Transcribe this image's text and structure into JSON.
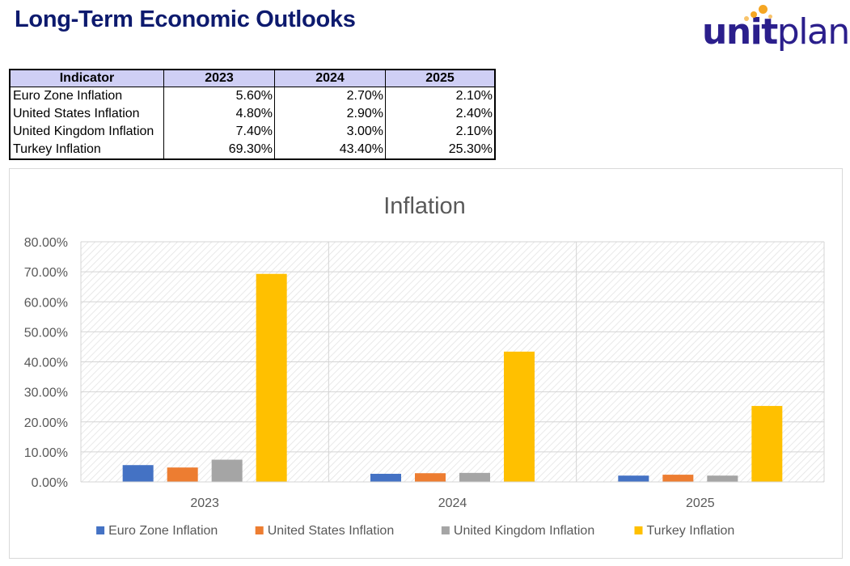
{
  "header": {
    "title": "Long-Term Economic Outlooks",
    "logo_text_bold": "unit",
    "logo_text_light": "plan"
  },
  "table": {
    "headers": [
      "Indicator",
      "2023",
      "2024",
      "2025"
    ],
    "rows": [
      [
        "Euro Zone Inflation",
        "5.60%",
        "2.70%",
        "2.10%"
      ],
      [
        "United States Inflation",
        "4.80%",
        "2.90%",
        "2.40%"
      ],
      [
        "United Kingdom Inflation",
        "7.40%",
        "3.00%",
        "2.10%"
      ],
      [
        "Turkey Inflation",
        "69.30%",
        "43.40%",
        "25.30%"
      ]
    ]
  },
  "colors": {
    "title": "#0d1a6e",
    "logo_primary": "#2b1f8c",
    "logo_accent": "#f5a623",
    "table_header_bg": "#cfcff5"
  },
  "chart_data": {
    "type": "bar",
    "title": "Inflation",
    "xlabel": "",
    "ylabel": "",
    "categories": [
      "2023",
      "2024",
      "2025"
    ],
    "ylim": [
      0,
      80
    ],
    "yticks": [
      "0.00%",
      "10.00%",
      "20.00%",
      "30.00%",
      "40.00%",
      "50.00%",
      "60.00%",
      "70.00%",
      "80.00%"
    ],
    "grid": true,
    "legend_position": "bottom",
    "series": [
      {
        "name": "Euro Zone Inflation",
        "color": "#4472c4",
        "values": [
          5.6,
          2.7,
          2.1
        ]
      },
      {
        "name": "United States Inflation",
        "color": "#ed7d31",
        "values": [
          4.8,
          2.9,
          2.4
        ]
      },
      {
        "name": "United Kingdom Inflation",
        "color": "#a5a5a5",
        "values": [
          7.4,
          3.0,
          2.1
        ]
      },
      {
        "name": "Turkey Inflation",
        "color": "#ffc000",
        "values": [
          69.3,
          43.4,
          25.3
        ]
      }
    ]
  }
}
